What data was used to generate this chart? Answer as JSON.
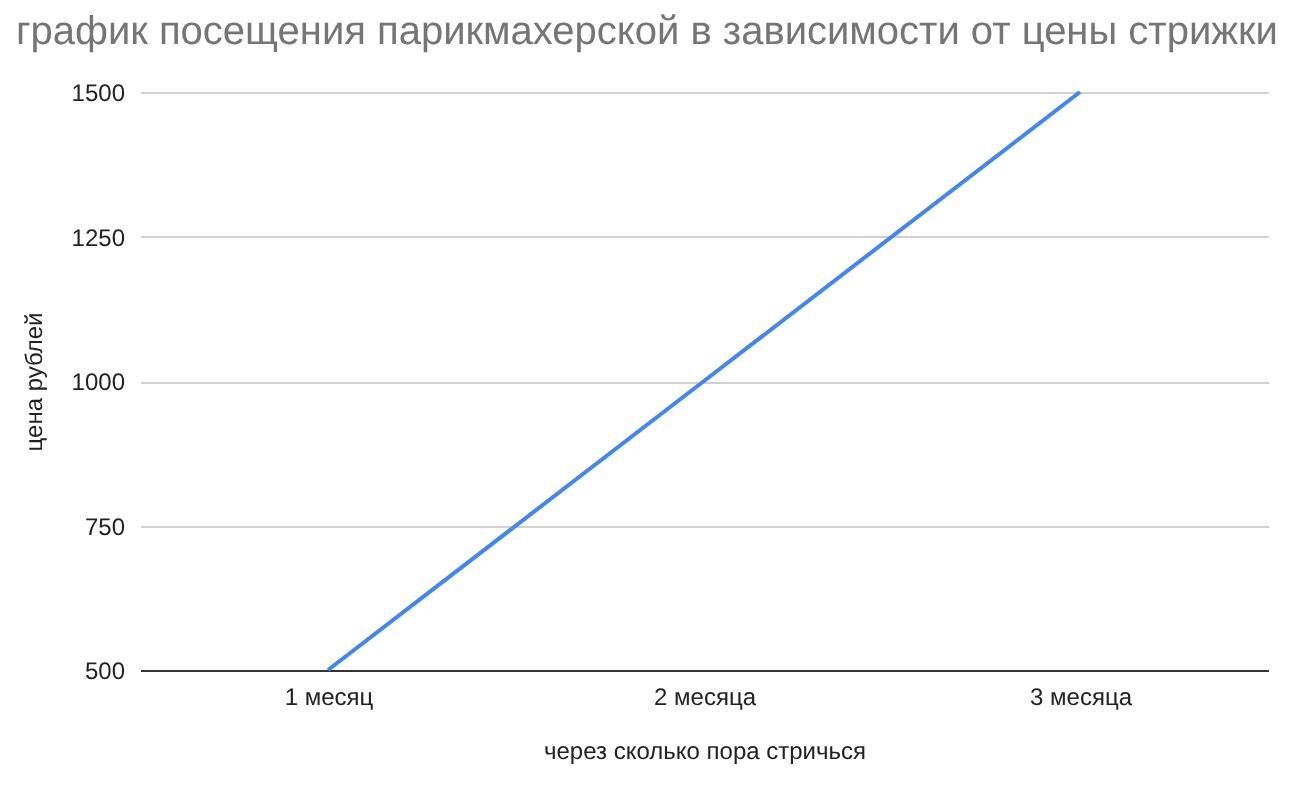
{
  "chart_data": {
    "type": "line",
    "title": "график посещения парикмахерской в зависимости от цены стрижки",
    "xlabel": "через сколько пора стричься",
    "ylabel": "цена рублей",
    "categories": [
      "1 месяц",
      "2 месяца",
      "3 месяца"
    ],
    "series": [
      {
        "color": "#4285f4",
        "values": [
          500,
          1000,
          1500
        ]
      }
    ],
    "ylim": [
      500,
      1500
    ],
    "yticks": [
      500,
      750,
      1000,
      1250,
      1500
    ],
    "grid": "y"
  }
}
